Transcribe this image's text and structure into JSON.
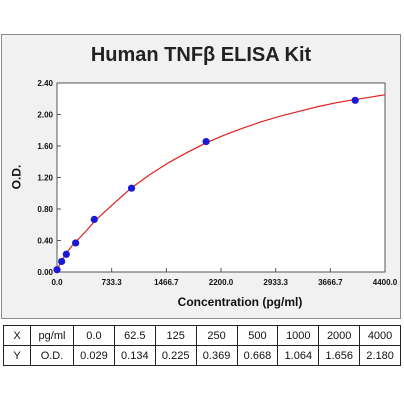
{
  "chart_data": {
    "type": "scatter",
    "title": "Human TNFβ ELISA Kit",
    "xlabel": "Concentration (pg/ml)",
    "ylabel": "O.D.",
    "xlim": [
      0,
      4400
    ],
    "ylim": [
      0,
      2.4
    ],
    "x_ticks": [
      "0.0",
      "733.3",
      "1466.7",
      "2200.0",
      "2933.3",
      "3666.7",
      "4400.0"
    ],
    "x_tick_values": [
      0,
      733.3,
      1466.7,
      2200,
      2933.3,
      3666.7,
      4400
    ],
    "y_ticks": [
      "0.00",
      "0.40",
      "0.80",
      "1.20",
      "1.60",
      "2.00",
      "2.40"
    ],
    "y_tick_values": [
      0,
      0.4,
      0.8,
      1.2,
      1.6,
      2.0,
      2.4
    ],
    "grid": false,
    "point_color": "#1a1ad6",
    "curve_color": "#e02020",
    "series": [
      {
        "x": [
          0,
          62.5,
          125,
          250,
          500,
          1000,
          2000,
          4000
        ],
        "y": [
          0.029,
          0.134,
          0.225,
          0.369,
          0.668,
          1.064,
          1.656,
          2.18
        ]
      }
    ],
    "fit_curve": {
      "x": [
        0,
        50,
        100,
        150,
        200,
        250,
        300,
        400,
        500,
        600,
        750,
        1000,
        1250,
        1500,
        1750,
        2000,
        2250,
        2500,
        2750,
        3000,
        3250,
        3500,
        3750,
        4000,
        4200,
        4400
      ],
      "y": [
        0.03,
        0.12,
        0.2,
        0.27,
        0.33,
        0.38,
        0.43,
        0.53,
        0.64,
        0.73,
        0.86,
        1.07,
        1.24,
        1.39,
        1.52,
        1.64,
        1.74,
        1.83,
        1.91,
        1.98,
        2.04,
        2.1,
        2.15,
        2.19,
        2.22,
        2.25
      ]
    }
  },
  "table": {
    "rows": [
      {
        "head": "X",
        "unit": "pg/ml",
        "values": [
          "0.0",
          "62.5",
          "125",
          "250",
          "500",
          "1000",
          "2000",
          "4000"
        ]
      },
      {
        "head": "Y",
        "unit": "O.D.",
        "values": [
          "0.029",
          "0.134",
          "0.225",
          "0.369",
          "0.668",
          "1.064",
          "1.656",
          "2.180"
        ]
      }
    ]
  }
}
